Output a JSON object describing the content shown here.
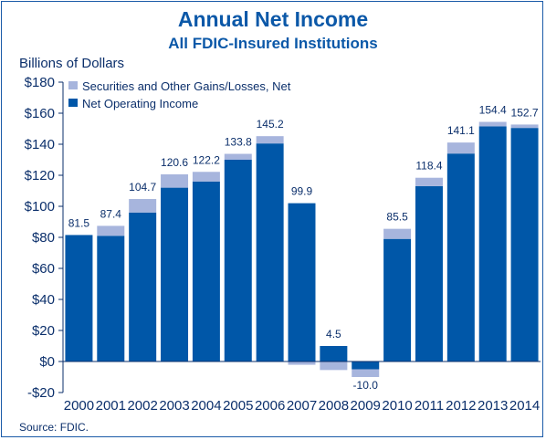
{
  "chart_data": {
    "type": "bar",
    "stacked": true,
    "title": "Annual Net Income",
    "subtitle": "All FDIC-Insured Institutions",
    "ylabel": "Billions of Dollars",
    "ylim": [
      -20,
      180
    ],
    "yticks": [
      -20,
      0,
      20,
      40,
      60,
      80,
      100,
      120,
      140,
      160,
      180
    ],
    "ytick_labels": [
      "-$20",
      "$0",
      "$20",
      "$40",
      "$60",
      "$80",
      "$100",
      "$120",
      "$140",
      "$160",
      "$180"
    ],
    "categories": [
      "2000",
      "2001",
      "2002",
      "2003",
      "2004",
      "2005",
      "2006",
      "2007",
      "2008",
      "2009",
      "2010",
      "2011",
      "2012",
      "2013",
      "2014"
    ],
    "series": [
      {
        "name": "Net Operating Income",
        "color": "#0057a8",
        "values": [
          81.5,
          81.0,
          96.0,
          112.0,
          116.0,
          130.0,
          140.5,
          102.0,
          10.0,
          -5.0,
          79.0,
          113.0,
          134.0,
          151.5,
          150.5
        ]
      },
      {
        "name": "Securities and Other Gains/Losses, Net",
        "color": "#a7b5dd",
        "values": [
          0.0,
          6.4,
          8.7,
          8.6,
          6.2,
          3.8,
          4.7,
          -2.1,
          -5.5,
          -5.0,
          6.5,
          5.4,
          7.1,
          2.9,
          2.2
        ]
      }
    ],
    "totals": [
      81.5,
      87.4,
      104.7,
      120.6,
      122.2,
      133.8,
      145.2,
      99.9,
      4.5,
      -10.0,
      85.5,
      118.4,
      141.1,
      154.4,
      152.7
    ],
    "total_labels": [
      "81.5",
      "87.4",
      "104.7",
      "120.6",
      "122.2",
      "133.8",
      "145.2",
      "99.9",
      "4.5",
      "-10.0",
      "85.5",
      "118.4",
      "141.1",
      "154.4",
      "152.7"
    ],
    "legend_position": "top-left",
    "grid": false
  },
  "source": "Source: FDIC."
}
